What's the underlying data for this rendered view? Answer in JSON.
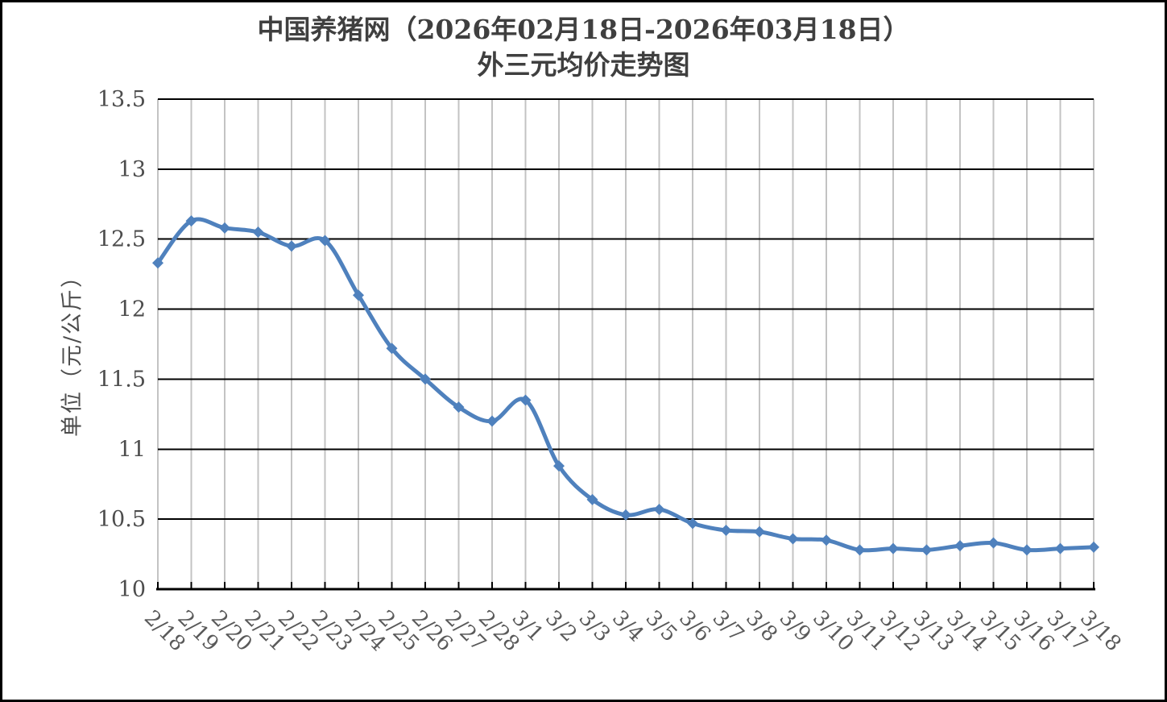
{
  "title": {
    "line1": "中国养猪网（2026年02月18日-2026年03月18日）",
    "line2": "外三元均价走势图"
  },
  "y_axis": {
    "title": "单位（元/公斤）",
    "tick_labels": [
      "13.5",
      "13",
      "12.5",
      "12",
      "11.5",
      "11",
      "10.5",
      "10"
    ]
  },
  "colors": {
    "line": "#4F81BD",
    "marker": "#4F81BD",
    "horizontal_gridline": "#000000",
    "vertical_gridline": "#C3C3C3",
    "axis_line": "#000000",
    "y_tick_text": "#4D4D4D",
    "x_tick_text": "#595959",
    "title_text": "#3F3F3F",
    "background": "#FFFFFF",
    "frame_border": "#000000"
  },
  "chart_data": {
    "type": "line",
    "title": "中国养猪网（2026年02月18日-2026年03月18日）外三元均价走势图",
    "xlabel": "",
    "ylabel": "单位（元/公斤）",
    "ylim": [
      10,
      13.5
    ],
    "y_tick_step": 0.5,
    "grid": true,
    "legend": false,
    "smooth_line": true,
    "marker": "diamond",
    "categories": [
      "2/18",
      "2/19",
      "2/20",
      "2/21",
      "2/22",
      "2/23",
      "2/24",
      "2/25",
      "2/26",
      "2/27",
      "2/28",
      "3/1",
      "3/2",
      "3/3",
      "3/4",
      "3/5",
      "3/6",
      "3/7",
      "3/8",
      "3/9",
      "3/10",
      "3/11",
      "3/12",
      "3/13",
      "3/14",
      "3/15",
      "3/16",
      "3/17",
      "3/18"
    ],
    "values": [
      12.33,
      12.63,
      12.58,
      12.55,
      12.45,
      12.49,
      12.1,
      11.72,
      11.5,
      11.3,
      11.2,
      11.35,
      10.88,
      10.64,
      10.53,
      10.57,
      10.47,
      10.42,
      10.41,
      10.36,
      10.35,
      10.28,
      10.29,
      10.28,
      10.31,
      10.33,
      10.28,
      10.29,
      10.3
    ]
  }
}
